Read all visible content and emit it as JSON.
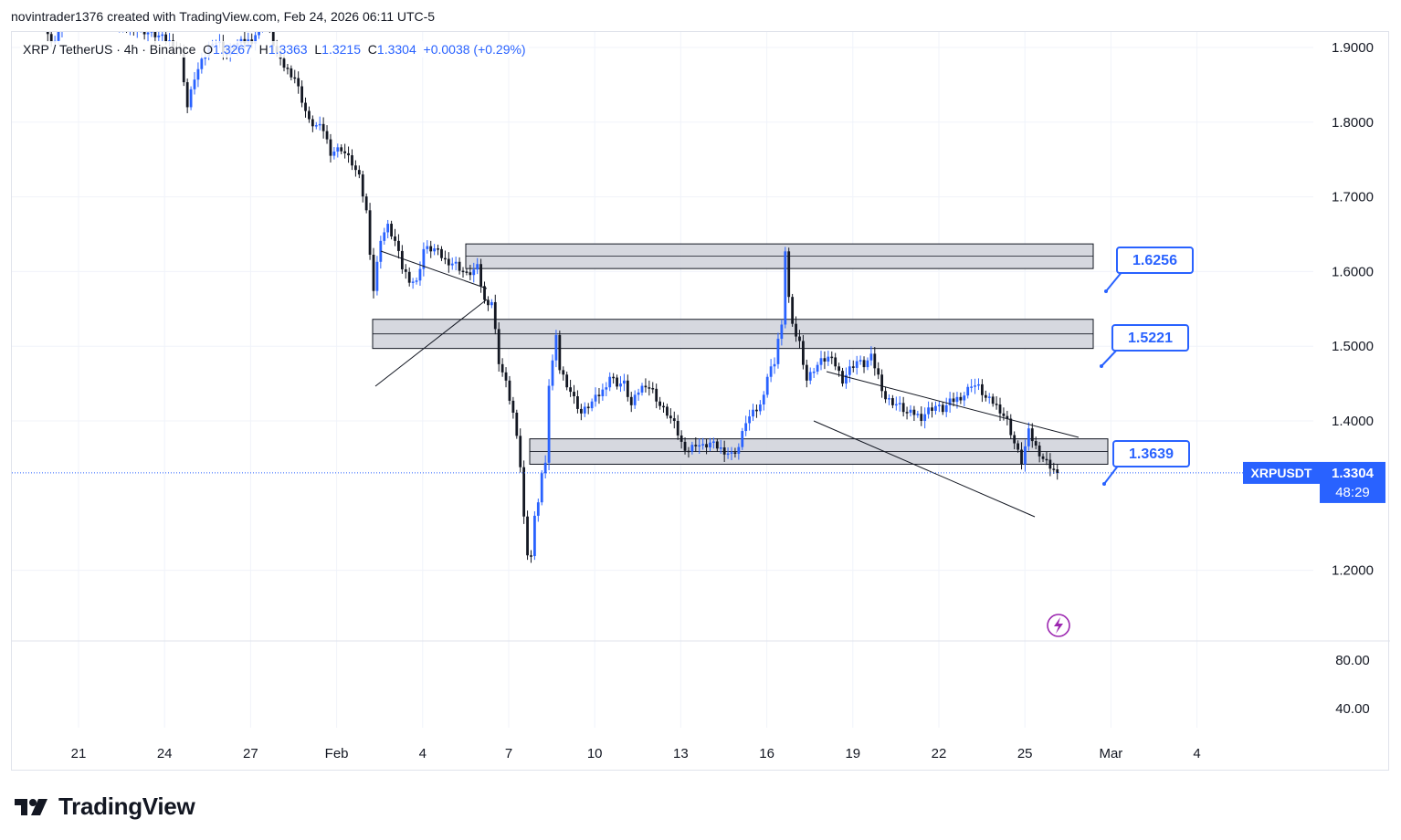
{
  "header": {
    "text": "novintrader1376 created with TradingView.com, Feb 24, 2026 06:11 UTC-5"
  },
  "legend": {
    "symbol": "XRP / TetherUS · 4h · Binance",
    "o_label": "O",
    "o": "1.3267",
    "h_label": "H",
    "h": "1.3363",
    "l_label": "L",
    "l": "1.3215",
    "c_label": "C",
    "c": "1.3304",
    "change": "+0.0038 (+0.29%)"
  },
  "price_tag": {
    "symbol": "XRPUSDT",
    "price": "1.3304",
    "countdown": "48:29"
  },
  "brand": "TradingView",
  "colors": {
    "up": "#2962ff",
    "down": "#131722",
    "zone_fill": "#d1d4dc",
    "label_border": "#2962ff",
    "grid": "#f0f3fa"
  },
  "chart_data": {
    "type": "candlestick",
    "interval": "4h",
    "price_axis": {
      "ticks": [
        "1.9000",
        "1.8000",
        "1.7000",
        "1.6000",
        "1.5000",
        "1.4000",
        "1.2000"
      ],
      "range": [
        1.155,
        2.03
      ]
    },
    "indicator_axis": {
      "ticks": [
        "80.00",
        "40.00"
      ]
    },
    "x_ticks": [
      "21",
      "24",
      "27",
      "Feb",
      "4",
      "7",
      "10",
      "13",
      "16",
      "19",
      "22",
      "25",
      "Mar",
      "4"
    ],
    "zones": [
      {
        "label": "1.6256",
        "low": 1.604,
        "high": 1.637
      },
      {
        "label": "1.5221",
        "low": 1.497,
        "high": 1.536
      },
      {
        "label": "1.3639",
        "low": 1.342,
        "high": 1.376
      }
    ],
    "last_price": 1.3304,
    "trendlines": [
      {
        "from": [
          "Jan 30",
          1.678
        ],
        "to": [
          "Feb 4",
          1.626
        ]
      },
      {
        "from": [
          "Jan 30",
          1.497
        ],
        "to": [
          "Feb 4",
          1.612
        ]
      },
      {
        "from": [
          "Feb 15",
          1.517
        ],
        "to": [
          "Feb 23",
          1.427
        ]
      },
      {
        "from": [
          "Feb 15",
          1.453
        ],
        "to": [
          "Feb 23",
          1.325
        ]
      }
    ],
    "anchors": [
      [
        0,
        1.98
      ],
      [
        4,
        1.965
      ],
      [
        8,
        1.935
      ],
      [
        10,
        1.905
      ],
      [
        14,
        1.94
      ],
      [
        18,
        1.99
      ],
      [
        22,
        1.945
      ],
      [
        28,
        1.93
      ],
      [
        34,
        1.925
      ],
      [
        40,
        1.915
      ],
      [
        44,
        1.905
      ],
      [
        46,
        1.895
      ],
      [
        48,
        1.82
      ],
      [
        50,
        1.86
      ],
      [
        52,
        1.88
      ],
      [
        55,
        1.91
      ],
      [
        57,
        1.905
      ],
      [
        59,
        1.89
      ],
      [
        62,
        1.905
      ],
      [
        66,
        1.91
      ],
      [
        70,
        1.94
      ],
      [
        72,
        1.905
      ],
      [
        74,
        1.88
      ],
      [
        78,
        1.86
      ],
      [
        82,
        1.8
      ],
      [
        86,
        1.79
      ],
      [
        88,
        1.76
      ],
      [
        91,
        1.765
      ],
      [
        94,
        1.745
      ],
      [
        96,
        1.725
      ],
      [
        98,
        1.68
      ],
      [
        100,
        1.575
      ],
      [
        102,
        1.645
      ],
      [
        104,
        1.66
      ],
      [
        106,
        1.64
      ],
      [
        108,
        1.605
      ],
      [
        110,
        1.59
      ],
      [
        112,
        1.585
      ],
      [
        114,
        1.63
      ],
      [
        117,
        1.63
      ],
      [
        120,
        1.615
      ],
      [
        123,
        1.61
      ],
      [
        126,
        1.595
      ],
      [
        129,
        1.605
      ],
      [
        131,
        1.56
      ],
      [
        133,
        1.56
      ],
      [
        135,
        1.48
      ],
      [
        137,
        1.45
      ],
      [
        139,
        1.41
      ],
      [
        141,
        1.34
      ],
      [
        142,
        1.27
      ],
      [
        143,
        1.225
      ],
      [
        144,
        1.22
      ],
      [
        145,
        1.27
      ],
      [
        146,
        1.295
      ],
      [
        147,
        1.33
      ],
      [
        148,
        1.34
      ],
      [
        149,
        1.45
      ],
      [
        151,
        1.51
      ],
      [
        152,
        1.47
      ],
      [
        154,
        1.45
      ],
      [
        156,
        1.43
      ],
      [
        158,
        1.41
      ],
      [
        160,
        1.42
      ],
      [
        162,
        1.43
      ],
      [
        164,
        1.44
      ],
      [
        166,
        1.46
      ],
      [
        168,
        1.45
      ],
      [
        170,
        1.45
      ],
      [
        172,
        1.42
      ],
      [
        174,
        1.44
      ],
      [
        176,
        1.45
      ],
      [
        178,
        1.44
      ],
      [
        180,
        1.42
      ],
      [
        182,
        1.41
      ],
      [
        184,
        1.395
      ],
      [
        186,
        1.37
      ],
      [
        188,
        1.36
      ],
      [
        190,
        1.37
      ],
      [
        192,
        1.365
      ],
      [
        194,
        1.37
      ],
      [
        196,
        1.365
      ],
      [
        198,
        1.36
      ],
      [
        200,
        1.355
      ],
      [
        202,
        1.365
      ],
      [
        204,
        1.4
      ],
      [
        206,
        1.41
      ],
      [
        208,
        1.42
      ],
      [
        210,
        1.46
      ],
      [
        212,
        1.48
      ],
      [
        213,
        1.51
      ],
      [
        214,
        1.525
      ],
      [
        215,
        1.63
      ],
      [
        216,
        1.565
      ],
      [
        217,
        1.525
      ],
      [
        219,
        1.505
      ],
      [
        221,
        1.455
      ],
      [
        223,
        1.47
      ],
      [
        225,
        1.48
      ],
      [
        227,
        1.485
      ],
      [
        229,
        1.475
      ],
      [
        231,
        1.455
      ],
      [
        233,
        1.47
      ],
      [
        235,
        1.48
      ],
      [
        237,
        1.475
      ],
      [
        239,
        1.485
      ],
      [
        241,
        1.46
      ],
      [
        243,
        1.43
      ],
      [
        245,
        1.425
      ],
      [
        247,
        1.42
      ],
      [
        249,
        1.41
      ],
      [
        251,
        1.41
      ],
      [
        253,
        1.405
      ],
      [
        255,
        1.415
      ],
      [
        257,
        1.42
      ],
      [
        259,
        1.415
      ],
      [
        261,
        1.425
      ],
      [
        263,
        1.43
      ],
      [
        265,
        1.435
      ],
      [
        267,
        1.45
      ],
      [
        269,
        1.445
      ],
      [
        271,
        1.43
      ],
      [
        273,
        1.425
      ],
      [
        275,
        1.415
      ],
      [
        277,
        1.4
      ],
      [
        279,
        1.37
      ],
      [
        281,
        1.345
      ],
      [
        283,
        1.385
      ],
      [
        285,
        1.365
      ],
      [
        287,
        1.35
      ],
      [
        289,
        1.34
      ],
      [
        291,
        1.3304
      ]
    ]
  }
}
